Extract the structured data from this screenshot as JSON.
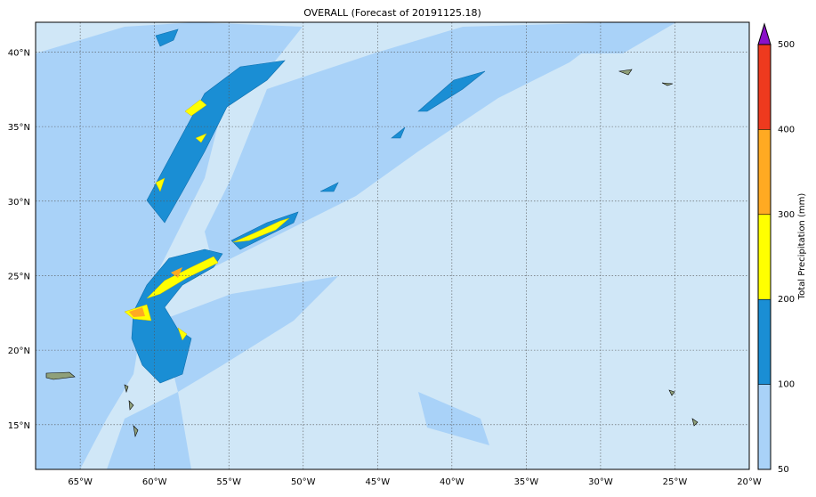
{
  "map": {
    "title": "OVERALL (Forecast of 20191125.18)",
    "lon_range": [
      -68,
      -20
    ],
    "lat_range": [
      12,
      42
    ],
    "lon_ticks": [
      {
        "value": -65,
        "label": "65°W"
      },
      {
        "value": -60,
        "label": "60°W"
      },
      {
        "value": -55,
        "label": "55°W"
      },
      {
        "value": -50,
        "label": "50°W"
      },
      {
        "value": -45,
        "label": "45°W"
      },
      {
        "value": -40,
        "label": "40°W"
      },
      {
        "value": -35,
        "label": "35°W"
      },
      {
        "value": -30,
        "label": "30°W"
      },
      {
        "value": -25,
        "label": "25°W"
      },
      {
        "value": -20,
        "label": "20°W"
      }
    ],
    "lat_ticks": [
      {
        "value": 15,
        "label": "15°N"
      },
      {
        "value": 20,
        "label": "20°N"
      },
      {
        "value": 25,
        "label": "25°N"
      },
      {
        "value": 30,
        "label": "30°N"
      },
      {
        "value": 35,
        "label": "35°N"
      },
      {
        "value": 40,
        "label": "40°N"
      }
    ],
    "colorbar": {
      "label": "Total Precipitation (mm)",
      "levels": [
        50,
        100,
        200,
        300,
        400,
        500
      ],
      "colors": [
        "#a9d2f8",
        "#1a8ed4",
        "#ffff00",
        "#ffaa22",
        "#ee3a1e"
      ],
      "over_color": "#8a10c8"
    }
  }
}
